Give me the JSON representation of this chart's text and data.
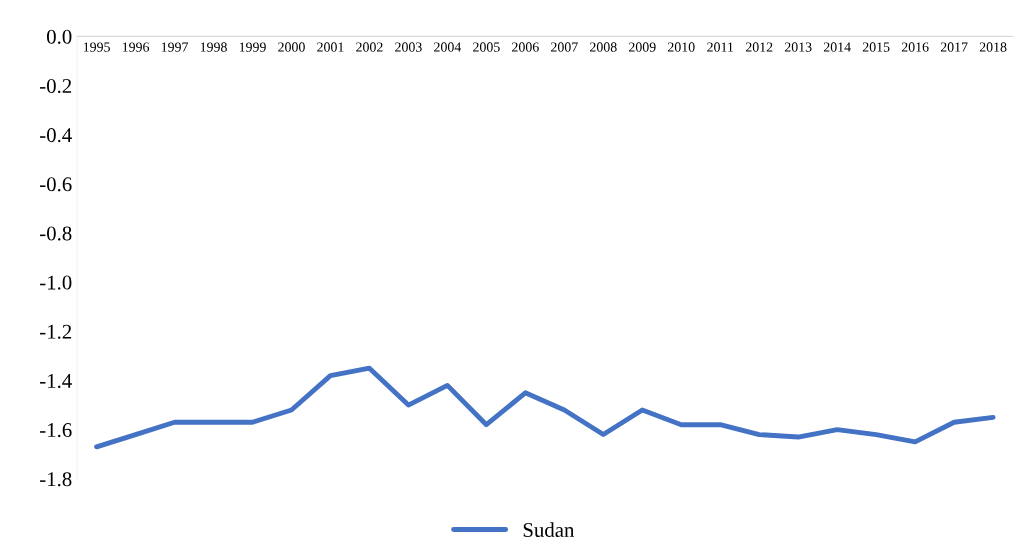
{
  "chart_data": {
    "type": "line",
    "categories": [
      "1995",
      "1996",
      "1997",
      "1998",
      "1999",
      "2000",
      "2001",
      "2002",
      "2003",
      "2004",
      "2005",
      "2006",
      "2007",
      "2008",
      "2009",
      "2010",
      "2011",
      "2012",
      "2013",
      "2014",
      "2015",
      "2016",
      "2017",
      "2018"
    ],
    "series": [
      {
        "name": "Sudan",
        "color": "#4472c4",
        "values": [
          -1.67,
          -1.62,
          -1.57,
          -1.57,
          -1.57,
          -1.52,
          -1.38,
          -1.35,
          -1.5,
          -1.42,
          -1.58,
          -1.45,
          -1.52,
          -1.62,
          -1.52,
          -1.58,
          -1.58,
          -1.62,
          -1.63,
          -1.6,
          -1.62,
          -1.65,
          -1.57,
          -1.55
        ]
      }
    ],
    "ylim": [
      -1.8,
      0.0
    ],
    "yticks": [
      {
        "value": 0,
        "label": "0.0"
      },
      {
        "value": -0.2,
        "label": "-0.2"
      },
      {
        "value": -0.4,
        "label": "-0.4"
      },
      {
        "value": -0.6,
        "label": "-0.6"
      },
      {
        "value": -0.8,
        "label": "-0.8"
      },
      {
        "value": -1.0,
        "label": "-1.0"
      },
      {
        "value": -1.2,
        "label": "-1.2"
      },
      {
        "value": -1.4,
        "label": "-1.4"
      },
      {
        "value": -1.6,
        "label": "-1.6"
      },
      {
        "value": -1.8,
        "label": "-1.8"
      }
    ],
    "grid": false,
    "legend": "bottom",
    "marker": "none",
    "line_style": "solid"
  }
}
